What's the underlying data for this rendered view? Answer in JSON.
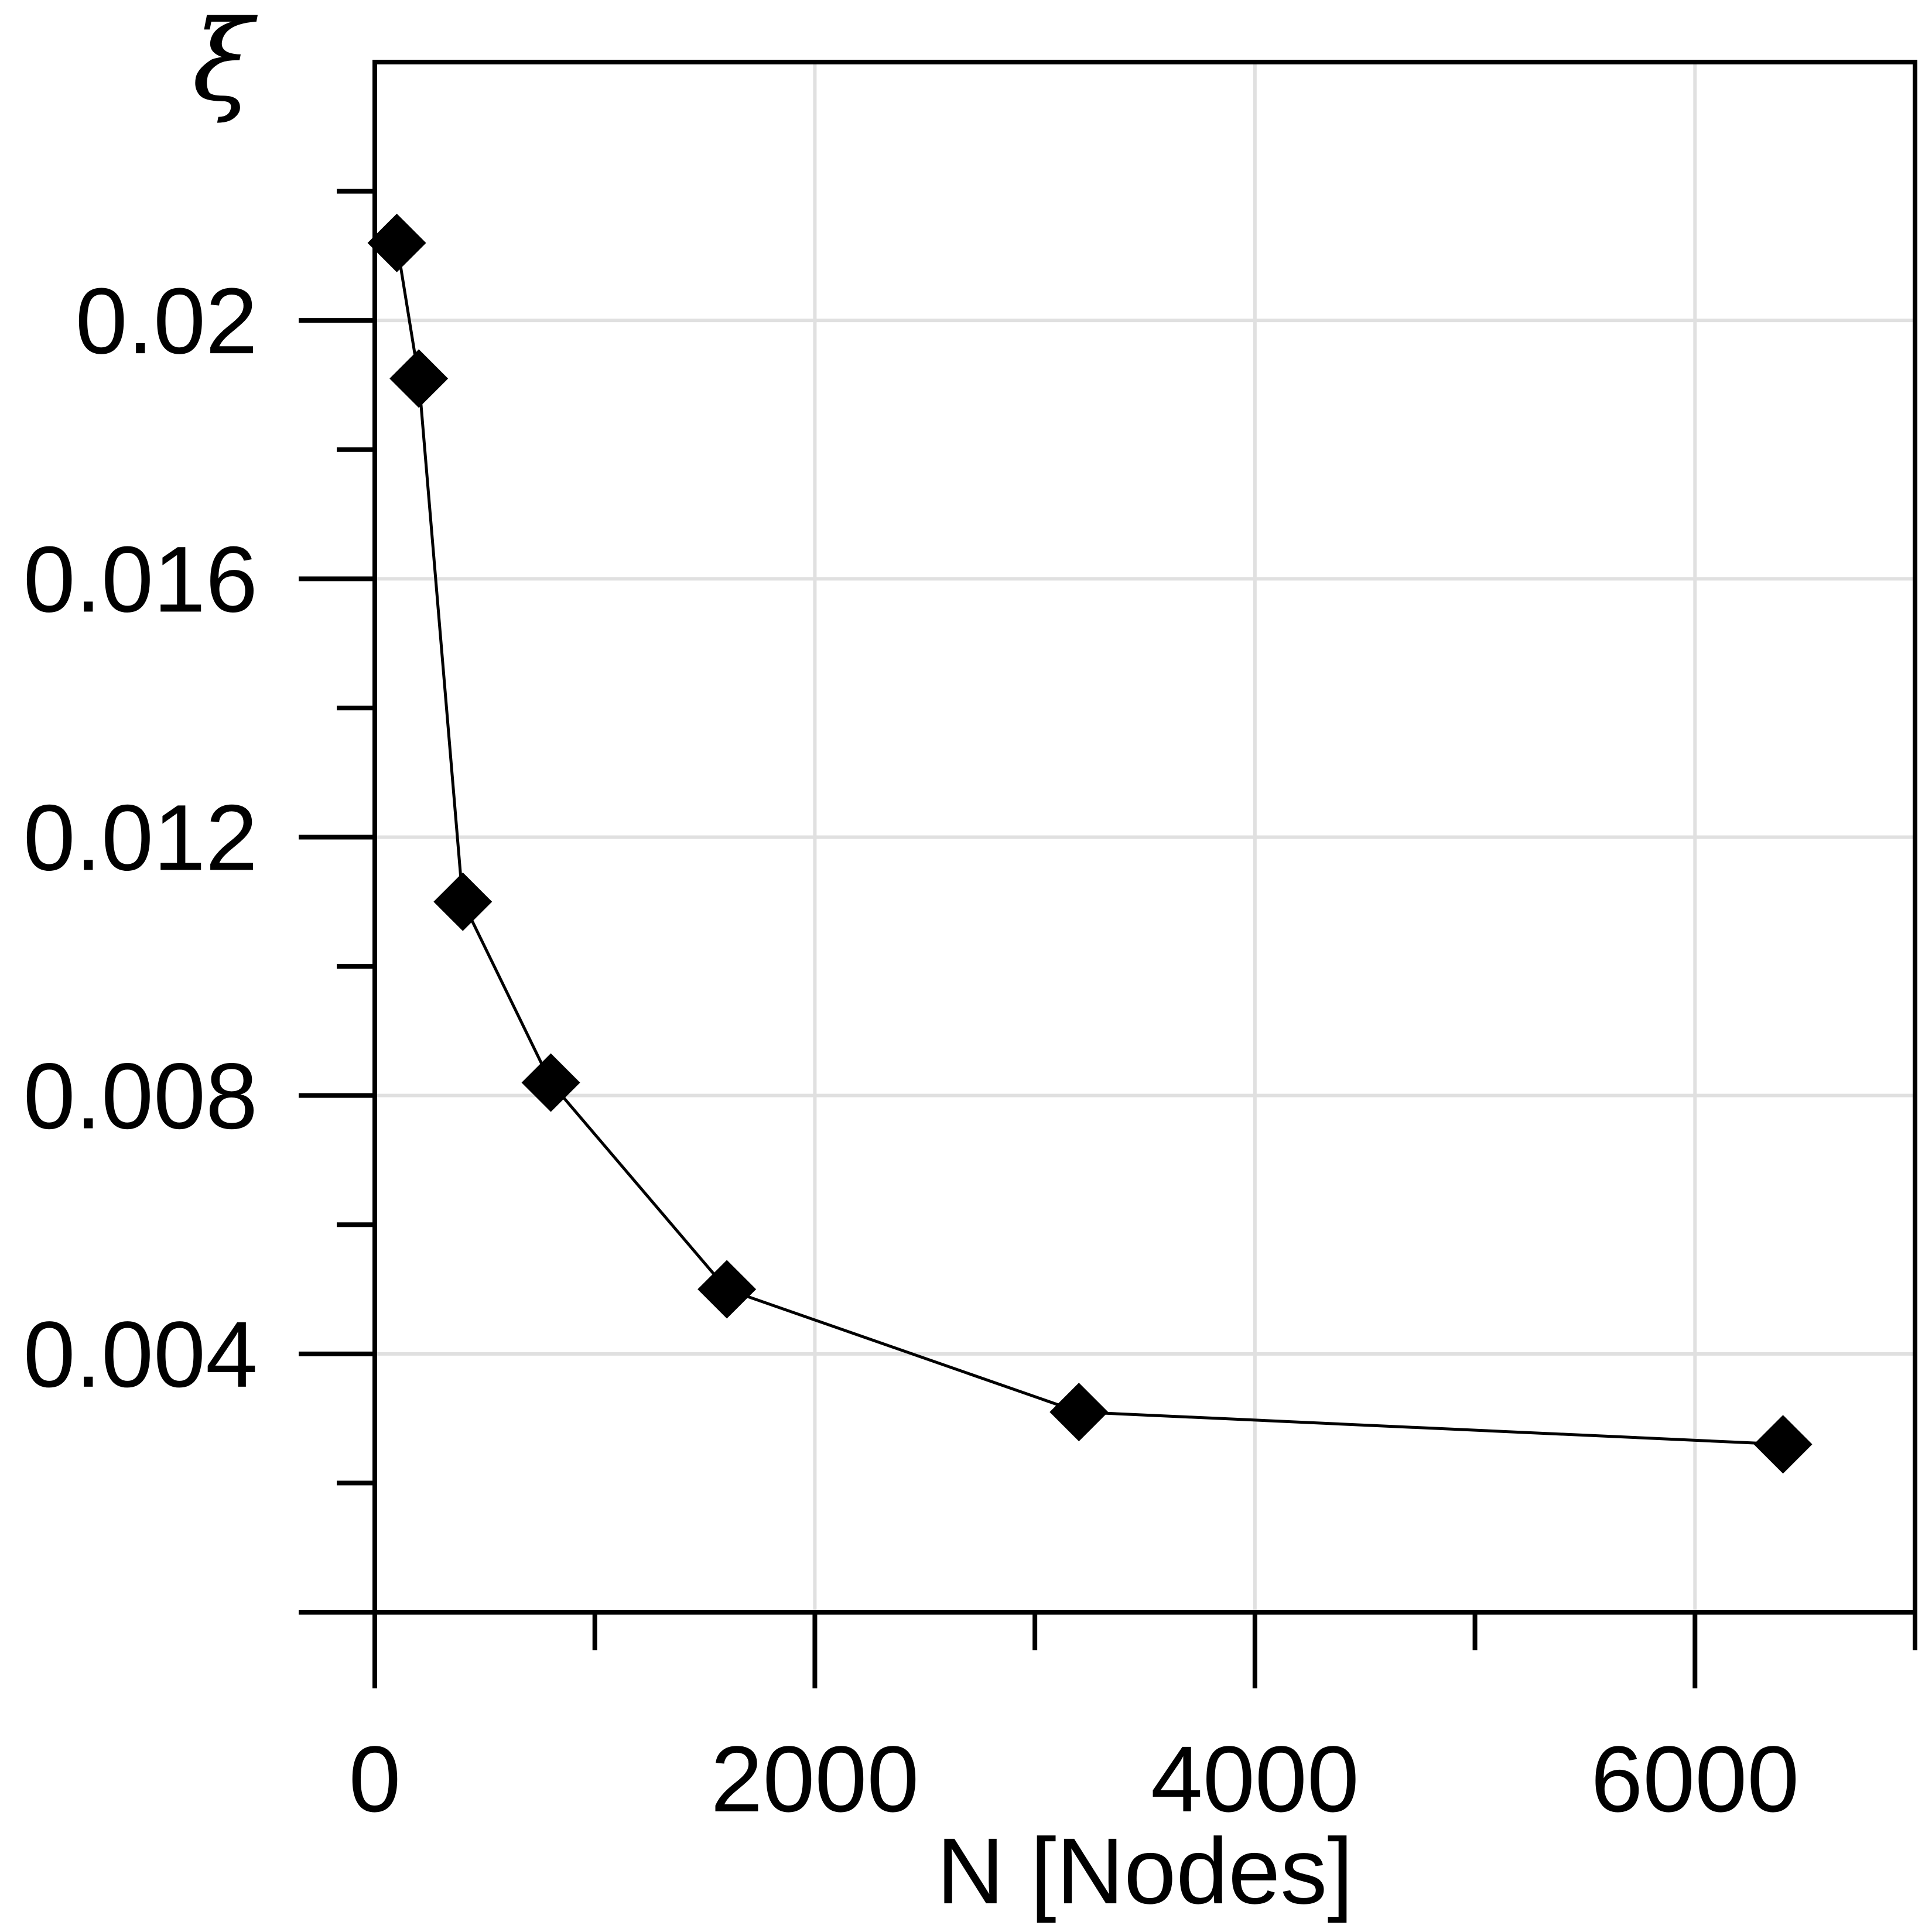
{
  "chart_data": {
    "type": "line",
    "title": "",
    "xlabel": "N [Nodes]",
    "ylabel": "ξ",
    "xlim": [
      0,
      7000
    ],
    "ylim": [
      0,
      0.024
    ],
    "x_ticks": [
      0,
      2000,
      4000,
      6000
    ],
    "x_tick_labels": [
      "0",
      "2000",
      "4000",
      "6000"
    ],
    "x_minor_ticks": [
      1000,
      3000,
      5000
    ],
    "y_ticks": [
      0.004,
      0.008,
      0.012,
      0.016,
      0.02
    ],
    "y_tick_labels": [
      "0.004",
      "0.008",
      "0.012",
      "0.016",
      "0.02"
    ],
    "y_minor_ticks": [
      0,
      0.002,
      0.006,
      0.01,
      0.014,
      0.018,
      0.022
    ],
    "grid": true,
    "legend": "none",
    "marker": "diamond",
    "series": [
      {
        "x": [
          100,
          200,
          400,
          800,
          1600,
          3200,
          6400
        ],
        "y": [
          0.0212,
          0.0191,
          0.011,
          0.0082,
          0.005,
          0.0031,
          0.0026
        ]
      }
    ]
  }
}
